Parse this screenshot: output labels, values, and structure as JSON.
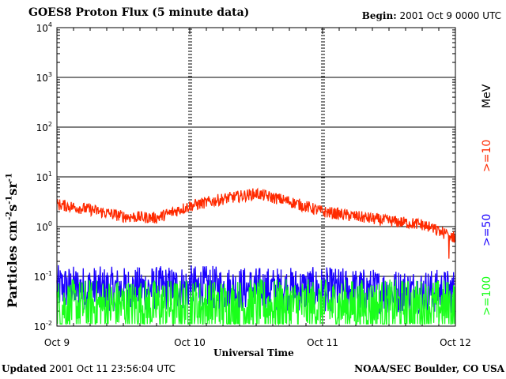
{
  "header": {
    "title": "GOES8 Proton Flux (5 minute data)",
    "begin_label": "Begin:",
    "begin_value": "2001 Oct 9 0000 UTC"
  },
  "footer": {
    "updated_label": "Updated",
    "updated_value": "2001 Oct 11 23:56:04 UTC",
    "credit": "NOAA/SEC Boulder, CO USA"
  },
  "colors": {
    "ge10": "#ff2a00",
    "ge50": "#1a00ff",
    "ge100": "#1aff1a"
  },
  "chart_data": {
    "type": "line",
    "title": "GOES8 Proton Flux (5 minute data)",
    "xlabel": "Universal Time",
    "ylabel": "Particles cm-2s-1sr-1",
    "yscale": "log",
    "ylim": [
      0.01,
      10000
    ],
    "yticks": [
      {
        "base": "10",
        "exp": "-2"
      },
      {
        "base": "10",
        "exp": "-1"
      },
      {
        "base": "10",
        "exp": "0"
      },
      {
        "base": "10",
        "exp": "1"
      },
      {
        "base": "10",
        "exp": "2"
      },
      {
        "base": "10",
        "exp": "3"
      },
      {
        "base": "10",
        "exp": "4"
      }
    ],
    "xlim": [
      "2001-10-09 00:00",
      "2001-10-12 00:00"
    ],
    "xticks": [
      "Oct 9",
      "Oct 10",
      "Oct 11",
      "Oct 12"
    ],
    "grid": "horizontal at decades; vertical dashed at day boundaries",
    "legend": "right-side vertical",
    "legend_labels": {
      "ge10": ">=10",
      "ge50": ">=50",
      "ge100": ">=100",
      "unit": "MeV"
    },
    "series": [
      {
        "name": ">=10",
        "time_hours": [
          0,
          6,
          12,
          18,
          24,
          30,
          36,
          42,
          48,
          54,
          60,
          66,
          72
        ],
        "values": [
          2.8,
          2.2,
          1.6,
          1.5,
          2.6,
          3.6,
          4.6,
          3.2,
          2.0,
          1.6,
          1.3,
          1.1,
          0.6
        ]
      },
      {
        "name": ">=50",
        "time_hours": [
          0,
          12,
          24,
          36,
          48,
          60,
          72
        ],
        "values": [
          0.06,
          0.055,
          0.06,
          0.055,
          0.055,
          0.05,
          0.05
        ]
      },
      {
        "name": ">=100",
        "time_hours": [
          0,
          12,
          24,
          36,
          48,
          60,
          72
        ],
        "values": [
          0.025,
          0.025,
          0.025,
          0.025,
          0.025,
          0.025,
          0.025
        ]
      }
    ]
  }
}
